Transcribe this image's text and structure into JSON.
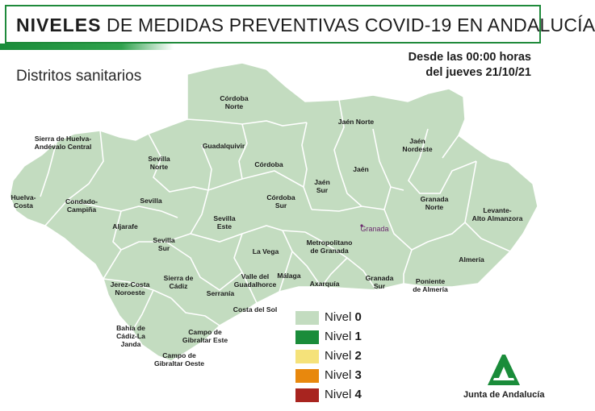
{
  "header": {
    "title_bold": "NIVELES",
    "title_rest": "DE MEDIDAS PREVENTIVAS COVID-19 EN ANDALUCÍA",
    "subtitle": "Distritos sanitarios",
    "date_line1": "Desde las 00:00 horas",
    "date_line2": "del jueves 21/10/21",
    "accent_color": "#1f8a3b"
  },
  "map": {
    "fill_color": "#c3dcc0",
    "border_color": "#ffffff",
    "districts": [
      {
        "name": "Córdoba\nNorte",
        "level": 0
      },
      {
        "name": "Sierra de Huelva-\nAndévalo Central",
        "level": 0
      },
      {
        "name": "Jaén Norte",
        "level": 0
      },
      {
        "name": "Guadalquivir",
        "level": 0
      },
      {
        "name": "Jaén\nNordeste",
        "level": 0
      },
      {
        "name": "Sevilla\nNorte",
        "level": 0
      },
      {
        "name": "Córdoba",
        "level": 0
      },
      {
        "name": "Jaén",
        "level": 0
      },
      {
        "name": "Jaén\nSur",
        "level": 0
      },
      {
        "name": "Huelva-\nCosta",
        "level": 0
      },
      {
        "name": "Condado-\nCampiña",
        "level": 0
      },
      {
        "name": "Sevilla",
        "level": 0
      },
      {
        "name": "Córdoba\nSur",
        "level": 0
      },
      {
        "name": "Granada\nNorte",
        "level": 0
      },
      {
        "name": "Levante-\nAlto Almanzora",
        "level": 0
      },
      {
        "name": "Sevilla\nEste",
        "level": 0
      },
      {
        "name": "Aljarafe",
        "level": 0
      },
      {
        "name": "Sevilla\nSur",
        "level": 0
      },
      {
        "name": "Metropolitano\nde Granada",
        "level": 0
      },
      {
        "name": "La Vega",
        "level": 0
      },
      {
        "name": "Almería",
        "level": 0
      },
      {
        "name": "Sierra de\nCádiz",
        "level": 0
      },
      {
        "name": "Valle del\nGuadalhorce",
        "level": 0
      },
      {
        "name": "Málaga",
        "level": 0
      },
      {
        "name": "Granada\nSur",
        "level": 0
      },
      {
        "name": "Jerez-Costa\nNoroeste",
        "level": 0
      },
      {
        "name": "Axarquía",
        "level": 0
      },
      {
        "name": "Poniente\nde Almería",
        "level": 0
      },
      {
        "name": "Serranía",
        "level": 0
      },
      {
        "name": "Costa del Sol",
        "level": 0
      },
      {
        "name": "Bahía de\nCádiz-La\nJanda",
        "level": 0
      },
      {
        "name": "Campo de\nGibraltar Este",
        "level": 0
      },
      {
        "name": "Campo de\nGibraltar Oeste",
        "level": 0
      }
    ],
    "cities": [
      {
        "name": "Granada"
      }
    ]
  },
  "legend": [
    {
      "label": "Nivel",
      "num": "0",
      "color": "#c3dcc0"
    },
    {
      "label": "Nivel",
      "num": "1",
      "color": "#1a8c3a"
    },
    {
      "label": "Nivel",
      "num": "2",
      "color": "#f5e27a"
    },
    {
      "label": "Nivel",
      "num": "3",
      "color": "#e8880d"
    },
    {
      "label": "Nivel",
      "num": "4",
      "color": "#a8241f"
    }
  ],
  "logo": {
    "text": "Junta de Andalucía",
    "color": "#1a8c3a"
  }
}
